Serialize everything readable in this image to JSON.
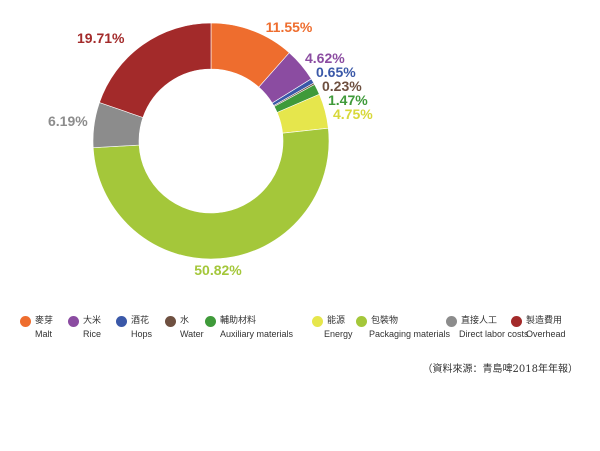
{
  "chart_data": {
    "type": "pie",
    "variant": "donut",
    "start_angle_deg": 0,
    "direction": "clockwise",
    "slices": [
      {
        "zh": "麥芽",
        "en": "Malt",
        "value": 11.55,
        "label": "11.55%",
        "color": "#ee6d2e"
      },
      {
        "zh": "大米",
        "en": "Rice",
        "value": 4.62,
        "label": "4.62%",
        "color": "#8b4ca1"
      },
      {
        "zh": "酒花",
        "en": "Hops",
        "value": 0.65,
        "label": "0.65%",
        "color": "#3a58a8"
      },
      {
        "zh": "水",
        "en": "Water",
        "value": 0.23,
        "label": "0.23%",
        "color": "#6e5040"
      },
      {
        "zh": "輔助材料",
        "en": "Auxiliary materials",
        "value": 1.47,
        "label": "1.47%",
        "color": "#3f9a3a"
      },
      {
        "zh": "能源",
        "en": "Energy",
        "value": 4.75,
        "label": "4.75%",
        "color": "#e6e64c"
      },
      {
        "zh": "包裝物",
        "en": "Packaging materials",
        "value": 50.82,
        "label": "50.82%",
        "color": "#a4c73a"
      },
      {
        "zh": "直接人工",
        "en": "Direct labor costs",
        "value": 6.19,
        "label": "6.19%",
        "color": "#8c8c8c"
      },
      {
        "zh": "製造費用",
        "en": "Overhead",
        "value": 19.71,
        "label": "19.71%",
        "color": "#a32a2a"
      }
    ]
  },
  "source": "（資料來源：青島啤2018年年報）"
}
